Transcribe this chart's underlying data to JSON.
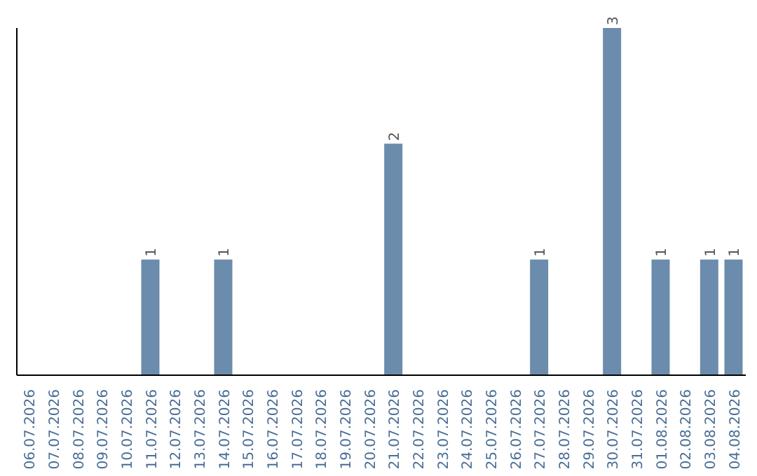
{
  "chart_data": {
    "type": "bar",
    "categories": [
      "06.07.2026",
      "07.07.2026",
      "08.07.2026",
      "09.07.2026",
      "10.07.2026",
      "11.07.2026",
      "12.07.2026",
      "13.07.2026",
      "14.07.2026",
      "15.07.2026",
      "16.07.2026",
      "17.07.2026",
      "18.07.2026",
      "19.07.2026",
      "20.07.2026",
      "21.07.2026",
      "22.07.2026",
      "23.07.2026",
      "24.07.2026",
      "25.07.2026",
      "26.07.2026",
      "27.07.2026",
      "28.07.2026",
      "29.07.2026",
      "30.07.2026",
      "31.07.2026",
      "01.08.2026",
      "02.08.2026",
      "03.08.2026",
      "04.08.2026"
    ],
    "values": [
      0,
      0,
      0,
      0,
      0,
      1,
      0,
      0,
      1,
      0,
      0,
      0,
      0,
      0,
      0,
      2,
      0,
      0,
      0,
      0,
      0,
      1,
      0,
      0,
      3,
      0,
      1,
      0,
      1,
      1
    ],
    "value_labels": [
      null,
      null,
      null,
      null,
      null,
      "1",
      null,
      null,
      "1",
      null,
      null,
      null,
      null,
      null,
      null,
      "2",
      null,
      null,
      null,
      null,
      null,
      "1",
      null,
      null,
      "3",
      null,
      "1",
      null,
      "1",
      "1"
    ],
    "color": "#6b8cac"
  }
}
